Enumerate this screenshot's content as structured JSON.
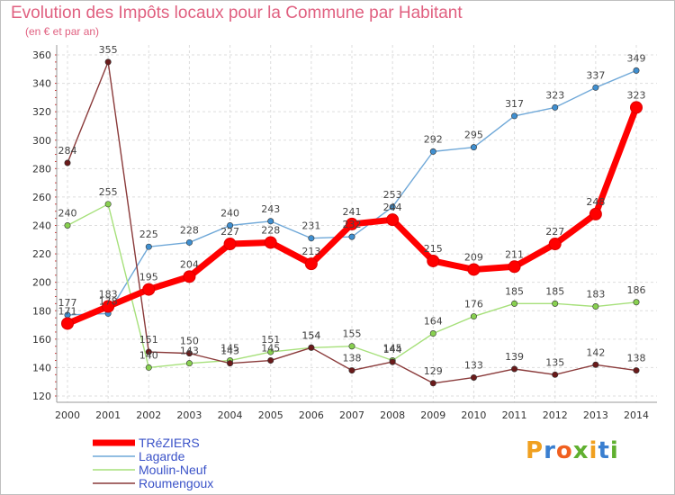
{
  "chart_data": {
    "type": "line",
    "title": "Evolution des Impôts locaux pour la Commune par Habitant",
    "subtitle": "(en € et par an)",
    "xlabel": "",
    "ylabel": "",
    "x": [
      "2000",
      "2001",
      "2002",
      "2003",
      "2004",
      "2005",
      "2006",
      "2007",
      "2008",
      "2009",
      "2010",
      "2011",
      "2012",
      "2013",
      "2014"
    ],
    "ylim": [
      120,
      360
    ],
    "yticks": [
      120,
      140,
      160,
      180,
      200,
      220,
      240,
      260,
      280,
      300,
      320,
      340,
      360
    ],
    "grid": true,
    "legend_position": "bottom-left",
    "series": [
      {
        "name": "Lagarde",
        "color": "#6fa8d8",
        "point_color": "#3f8fd0",
        "values": [
          177,
          178,
          225,
          228,
          240,
          243,
          231,
          232,
          253,
          292,
          295,
          317,
          323,
          337,
          349
        ]
      },
      {
        "name": "Moulin-Neuf",
        "color": "#a6e07a",
        "point_color": "#88d050",
        "values": [
          240,
          255,
          140,
          143,
          145,
          151,
          154,
          155,
          145,
          164,
          176,
          185,
          185,
          183,
          186
        ]
      },
      {
        "name": "Roumengoux",
        "color": "#8a3a3a",
        "point_color": "#6a1a1a",
        "values": [
          284,
          355,
          151,
          150,
          143,
          145,
          154,
          138,
          144,
          129,
          133,
          139,
          135,
          142,
          138
        ]
      },
      {
        "name": "TRéZIERS",
        "color": "#ff0000",
        "point_color": "#ff0000",
        "values": [
          171,
          183,
          195,
          204,
          227,
          228,
          213,
          241,
          244,
          215,
          209,
          211,
          227,
          248,
          323
        ]
      }
    ],
    "legend": [
      "TRéZIERS",
      "Lagarde",
      "Moulin-Neuf",
      "Roumengoux"
    ]
  },
  "branding": {
    "logo_text": "Proxiti",
    "logo_letters": [
      "P",
      "r",
      "o",
      "x",
      "i",
      "t",
      "i"
    ],
    "logo_colors": [
      "#f0a020",
      "#3a7fd0",
      "#f06020",
      "#60b030",
      "#f0a020",
      "#3a7fd0",
      "#60b030"
    ]
  }
}
